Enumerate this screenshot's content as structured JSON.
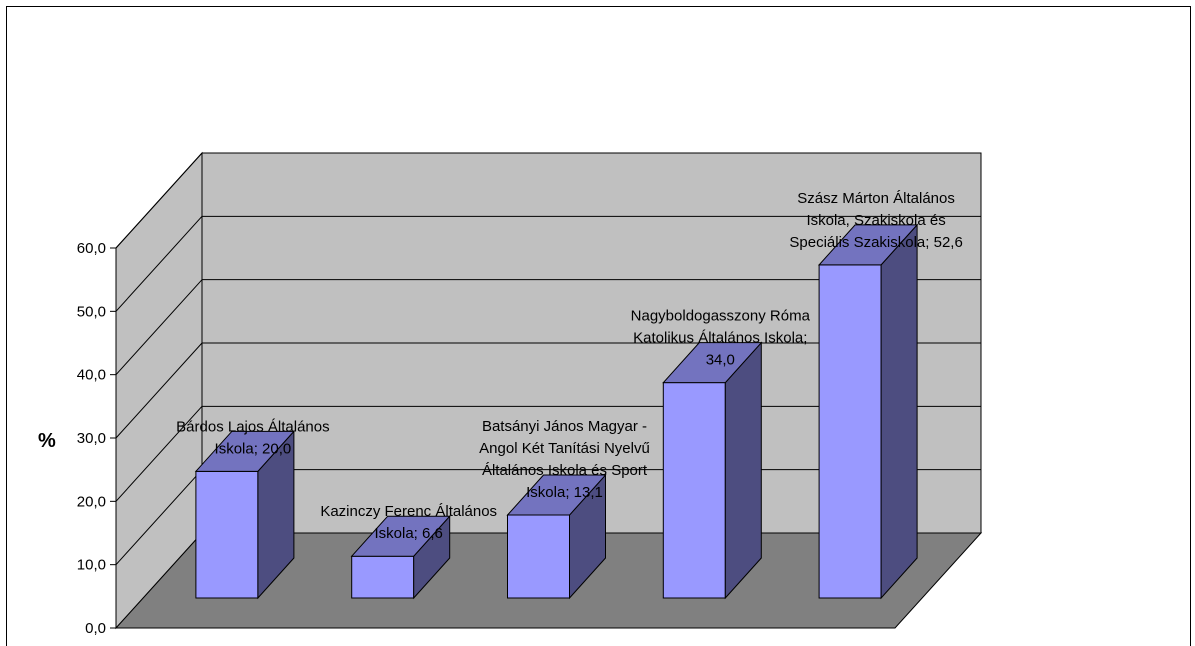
{
  "chart_data": {
    "type": "bar",
    "title": "",
    "xlabel": "",
    "ylabel": "%",
    "ylim": [
      0,
      60
    ],
    "ytick_labels": [
      "0,0",
      "10,0",
      "20,0",
      "30,0",
      "40,0",
      "50,0",
      "60,0"
    ],
    "categories": [
      "Bárdos Lajos Általános Iskola",
      "Kazinczy Ferenc Általános Iskola",
      "Batsányi János Magyar - Angol Két Tanítási Nyelvű Általános Iskola és Sport Iskola",
      "Nagyboldogasszony Római Katolikus Általános Iskola",
      "Szász Márton Általános Iskola, Szakiskola és Speciális Szakiskola"
    ],
    "values": [
      20.0,
      6.6,
      13.1,
      34.0,
      52.6
    ],
    "data_labels": [
      [
        "Bárdos Lajos Általános",
        "Iskola; 20,0"
      ],
      [
        "Kazinczy Ferenc Általános",
        "Iskola; 6,6"
      ],
      [
        "Batsányi János Magyar -",
        "Angol Két Tanítási Nyelvű",
        "Általános Iskola és Sport",
        "Iskola; 13,1"
      ],
      [
        "Nagyboldogasszony Róma",
        "Katolikus Általános Iskola;",
        "34,0"
      ],
      [
        "Szász Márton Általános",
        "Iskola, Szakiskola és",
        "Speciális Szakiskola; 52,6"
      ]
    ],
    "grid": true,
    "legend": "none",
    "style": "3d",
    "colors": {
      "bar_front": "#9999ff",
      "bar_side": "#4d4d80",
      "bar_top": "#7373bf",
      "back_wall": "#c0c0c0",
      "side_wall": "#c0c0c0",
      "floor": "#808080",
      "gridline": "#000000"
    }
  }
}
